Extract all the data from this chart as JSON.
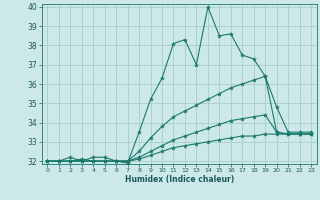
{
  "xlabel": "Humidex (Indice chaleur)",
  "bg_color": "#cce8e8",
  "grid_color": "#aacccc",
  "line_color": "#1a7a6a",
  "xlim": [
    -0.5,
    23.5
  ],
  "ylim": [
    31.85,
    40.15
  ],
  "yticks": [
    32,
    33,
    34,
    35,
    36,
    37,
    38,
    39,
    40
  ],
  "xticks": [
    0,
    1,
    2,
    3,
    4,
    5,
    6,
    7,
    8,
    9,
    10,
    11,
    12,
    13,
    14,
    15,
    16,
    17,
    18,
    19,
    20,
    21,
    22,
    23
  ],
  "series": [
    {
      "x": [
        0,
        1,
        2,
        3,
        4,
        5,
        6,
        7,
        8,
        9,
        10,
        11,
        12,
        13,
        14,
        15,
        16,
        17,
        18,
        19,
        20,
        21,
        22,
        23
      ],
      "y": [
        32.0,
        32.0,
        32.2,
        32.0,
        32.2,
        32.2,
        32.0,
        31.9,
        33.5,
        35.2,
        36.3,
        38.1,
        38.3,
        37.0,
        40.0,
        38.5,
        38.6,
        37.5,
        37.3,
        36.4,
        34.8,
        33.5,
        33.5,
        33.5
      ]
    },
    {
      "x": [
        0,
        1,
        2,
        3,
        4,
        5,
        6,
        7,
        8,
        9,
        10,
        11,
        12,
        13,
        14,
        15,
        16,
        17,
        18,
        19,
        20,
        21,
        22,
        23
      ],
      "y": [
        32.0,
        32.0,
        32.0,
        32.1,
        32.0,
        32.0,
        32.0,
        32.0,
        32.5,
        33.2,
        33.8,
        34.3,
        34.6,
        34.9,
        35.2,
        35.5,
        35.8,
        36.0,
        36.2,
        36.4,
        33.5,
        33.4,
        33.4,
        33.4
      ]
    },
    {
      "x": [
        0,
        1,
        2,
        3,
        4,
        5,
        6,
        7,
        8,
        9,
        10,
        11,
        12,
        13,
        14,
        15,
        16,
        17,
        18,
        19,
        20,
        21,
        22,
        23
      ],
      "y": [
        32.0,
        32.0,
        32.0,
        32.0,
        32.0,
        32.0,
        32.0,
        32.0,
        32.2,
        32.5,
        32.8,
        33.1,
        33.3,
        33.5,
        33.7,
        33.9,
        34.1,
        34.2,
        34.3,
        34.4,
        33.5,
        33.4,
        33.4,
        33.4
      ]
    },
    {
      "x": [
        0,
        1,
        2,
        3,
        4,
        5,
        6,
        7,
        8,
        9,
        10,
        11,
        12,
        13,
        14,
        15,
        16,
        17,
        18,
        19,
        20,
        21,
        22,
        23
      ],
      "y": [
        32.0,
        32.0,
        32.0,
        32.0,
        32.0,
        32.0,
        32.0,
        32.0,
        32.1,
        32.3,
        32.5,
        32.7,
        32.8,
        32.9,
        33.0,
        33.1,
        33.2,
        33.3,
        33.3,
        33.4,
        33.4,
        33.4,
        33.4,
        33.4
      ]
    }
  ]
}
